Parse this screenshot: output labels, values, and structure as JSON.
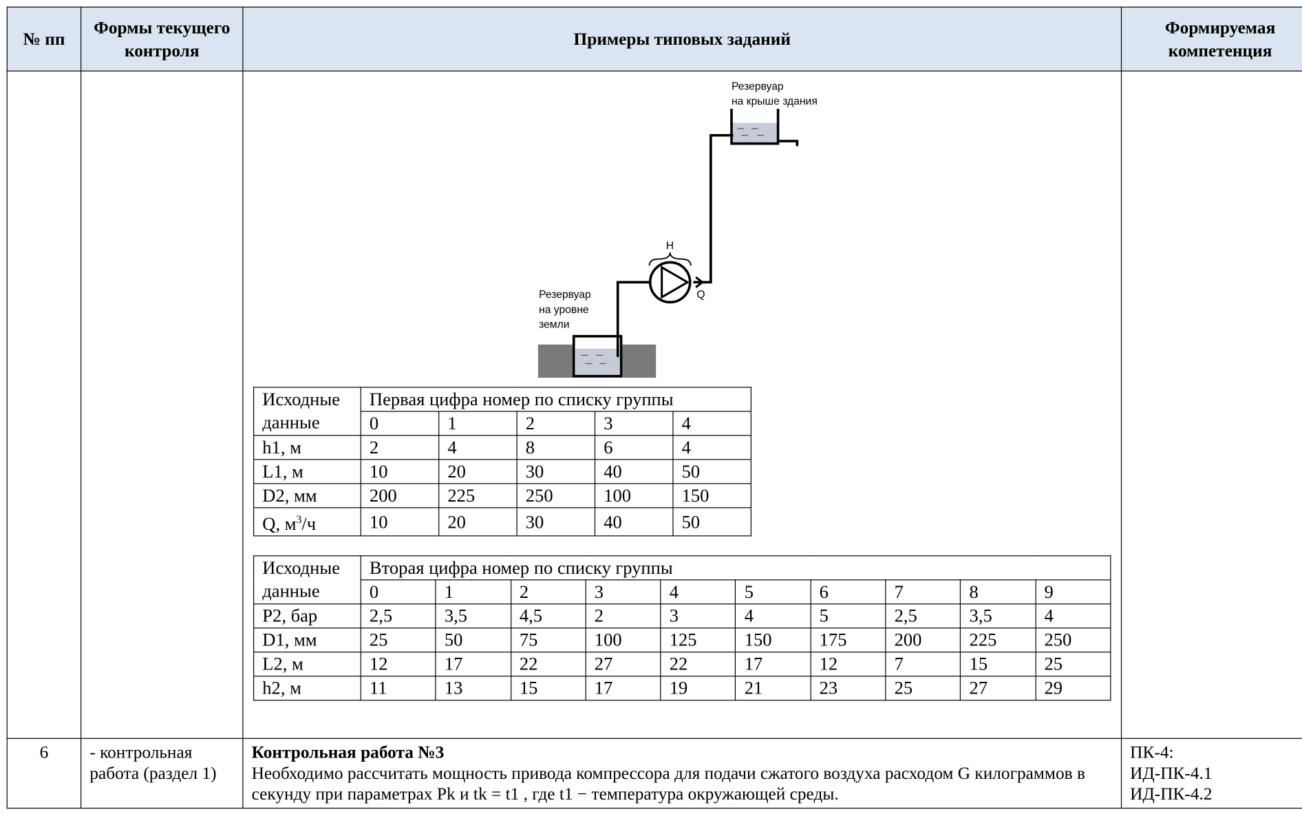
{
  "header": {
    "num": "№ пп",
    "forms": "Формы текущего контроля",
    "examples": "Примеры типовых заданий",
    "competence": "Формируемая компетенция"
  },
  "diagram": {
    "top_label": [
      "Резервуар",
      "на крыше здания"
    ],
    "head": "H",
    "flow": "Q",
    "bottom_label": [
      "Резервуар",
      "на уровне",
      "земли"
    ]
  },
  "table1": {
    "corner": "Исходные данные",
    "title": "Первая цифра номер по списку группы",
    "digits": [
      "0",
      "1",
      "2",
      "3",
      "4"
    ],
    "rows": [
      {
        "label": "h1, м",
        "cells": [
          "2",
          "4",
          "8",
          "6",
          "4"
        ]
      },
      {
        "label": "L1, м",
        "cells": [
          "10",
          "20",
          "30",
          "40",
          "50"
        ]
      },
      {
        "label": "D2, мм",
        "cells": [
          "200",
          "225",
          "250",
          "100",
          "150"
        ]
      },
      {
        "label": {
          "pre": "Q, м",
          "sup": "3",
          "post": "/ч"
        },
        "cells": [
          "10",
          "20",
          "30",
          "40",
          "50"
        ]
      }
    ]
  },
  "table2": {
    "corner": "Исходные данные",
    "title": "Вторая цифра номер по списку группы",
    "digits": [
      "0",
      "1",
      "2",
      "3",
      "4",
      "5",
      "6",
      "7",
      "8",
      "9"
    ],
    "rows": [
      {
        "label": "P2, бар",
        "cells": [
          "2,5",
          "3,5",
          "4,5",
          "2",
          "3",
          "4",
          "5",
          "2,5",
          "3,5",
          "4"
        ]
      },
      {
        "label": "D1, мм",
        "cells": [
          "25",
          "50",
          "75",
          "100",
          "125",
          "150",
          "175",
          "200",
          "225",
          "250"
        ]
      },
      {
        "label": "L2, м",
        "cells": [
          "12",
          "17",
          "22",
          "27",
          "22",
          "17",
          "12",
          "7",
          "15",
          "25"
        ]
      },
      {
        "label": "h2, м",
        "cells": [
          "11",
          "13",
          "15",
          "17",
          "19",
          "21",
          "23",
          "25",
          "27",
          "29"
        ]
      }
    ]
  },
  "row6": {
    "num": "6",
    "form": "- контрольная работа (раздел 1)",
    "title": "Контрольная работа №3",
    "text": "Необходимо рассчитать мощность привода компрессора для подачи сжатого воздуха расходом G килограммов в секунду при параметрах Pk и tk = t1 , где t1 − температура окружающей среды.",
    "competence": [
      "ПК-4:",
      "ИД-ПК-4.1",
      "ИД-ПК-4.2"
    ]
  }
}
